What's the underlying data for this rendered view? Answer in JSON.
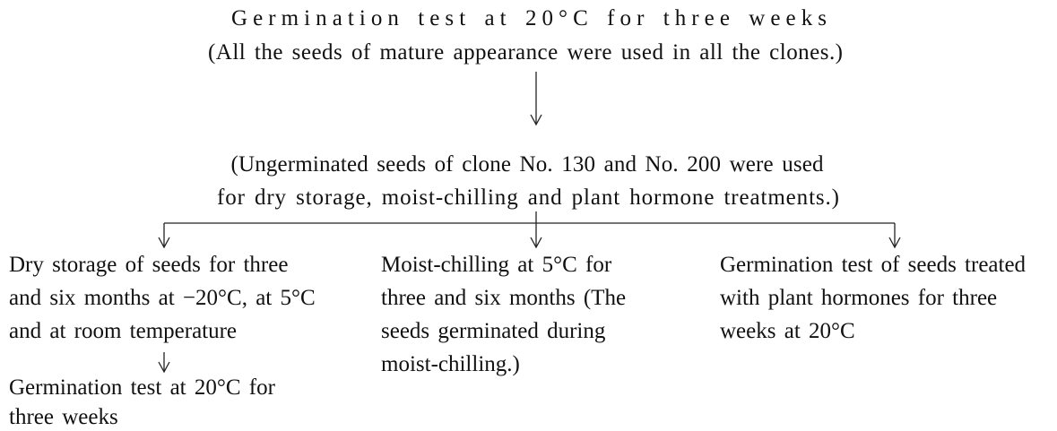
{
  "header": {
    "lines": [
      "Germination test at 20°C for three weeks",
      "(All the seeds of mature appearance were used in all the clones.)"
    ]
  },
  "intermediate": {
    "lines": [
      "(Ungerminated seeds of clone No. 130 and No. 200 were used",
      "for dry storage, moist-chilling and plant hormone treatments.)"
    ]
  },
  "branches": [
    {
      "lines": [
        "Dry storage of seeds for three",
        "and six months at −20°C, at 5°C",
        "and at room temperature"
      ]
    },
    {
      "lines": [
        "Moist-chilling at 5°C for",
        "three and six months (The",
        "seeds germinated during",
        "moist-chilling.)"
      ]
    },
    {
      "lines": [
        "Germination test of seeds treated",
        "with plant hormones for three",
        "weeks at 20°C"
      ]
    }
  ],
  "result": {
    "lines": [
      "Germination test at 20°C for",
      "three weeks"
    ]
  }
}
